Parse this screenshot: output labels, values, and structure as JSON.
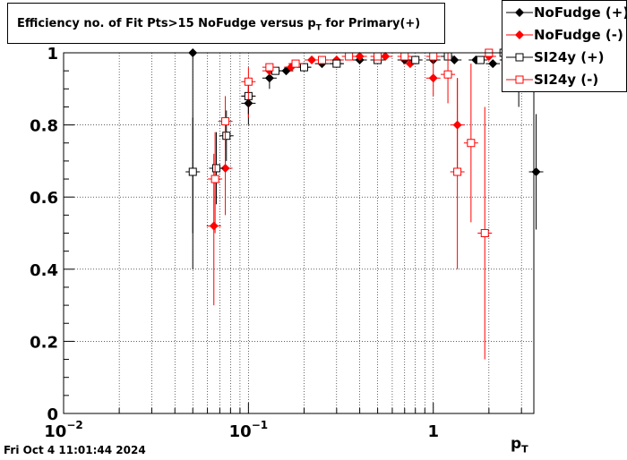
{
  "chart_data": {
    "type": "scatter",
    "title_main": "Efficiency no. of Fit Pts>15 NoFudge versus p",
    "title_sub": "T",
    "title_tail": " for Primary(+)",
    "xlabel_main": "p",
    "xlabel_sub": "T",
    "x_scale": "log",
    "xlim": [
      0.01,
      3.5
    ],
    "ylim": [
      0,
      1.0
    ],
    "grid": true,
    "legend_position": "top-right",
    "x_ticks": [
      {
        "value": 0.01,
        "base": "10",
        "exp": "−2"
      },
      {
        "value": 0.1,
        "base": "10",
        "exp": "−1"
      },
      {
        "value": 1,
        "base": "1",
        "exp": ""
      }
    ],
    "y_ticks": [
      "0",
      "0.2",
      "0.4",
      "0.6",
      "0.8",
      "1"
    ],
    "series": [
      {
        "name": "NoFudge (+)",
        "color": "#000000",
        "marker": "diamond-filled",
        "points": [
          {
            "x": 0.05,
            "y": 1.0,
            "lo": 0.4,
            "hi": 1.0
          },
          {
            "x": 0.1,
            "y": 0.86,
            "lo": 0.8,
            "hi": 0.9
          },
          {
            "x": 0.13,
            "y": 0.93,
            "lo": 0.9,
            "hi": 0.96
          },
          {
            "x": 0.16,
            "y": 0.95
          },
          {
            "x": 0.2,
            "y": 0.96
          },
          {
            "x": 0.25,
            "y": 0.97
          },
          {
            "x": 0.3,
            "y": 0.97
          },
          {
            "x": 0.4,
            "y": 0.98
          },
          {
            "x": 0.5,
            "y": 0.98
          },
          {
            "x": 0.7,
            "y": 0.98
          },
          {
            "x": 1.0,
            "y": 0.98
          },
          {
            "x": 1.3,
            "y": 0.98
          },
          {
            "x": 1.7,
            "y": 0.98
          },
          {
            "x": 2.1,
            "y": 0.97
          },
          {
            "x": 2.5,
            "y": 0.98
          },
          {
            "x": 2.9,
            "y": 0.92,
            "lo": 0.85,
            "hi": 0.98
          },
          {
            "x": 3.6,
            "y": 0.67,
            "lo": 0.51,
            "hi": 0.83
          }
        ]
      },
      {
        "name": "NoFudge (-)",
        "color": "#ff0000",
        "marker": "diamond-filled",
        "points": [
          {
            "x": 0.065,
            "y": 0.52,
            "lo": 0.3,
            "hi": 0.72
          },
          {
            "x": 0.075,
            "y": 0.68,
            "lo": 0.55,
            "hi": 0.8
          },
          {
            "x": 0.1,
            "y": 0.88,
            "lo": 0.82,
            "hi": 0.93
          },
          {
            "x": 0.13,
            "y": 0.95
          },
          {
            "x": 0.17,
            "y": 0.96
          },
          {
            "x": 0.22,
            "y": 0.98
          },
          {
            "x": 0.3,
            "y": 0.98
          },
          {
            "x": 0.4,
            "y": 0.99
          },
          {
            "x": 0.55,
            "y": 0.99
          },
          {
            "x": 0.75,
            "y": 0.97
          },
          {
            "x": 1.0,
            "y": 0.93,
            "lo": 0.88,
            "hi": 0.98
          },
          {
            "x": 1.35,
            "y": 0.8,
            "lo": 0.67,
            "hi": 0.93
          },
          {
            "x": 2.0,
            "y": 0.99
          },
          {
            "x": 3.2,
            "y": 1.0
          }
        ]
      },
      {
        "name": "SI24y (+)",
        "color": "#000000",
        "marker": "square-open",
        "points": [
          {
            "x": 0.05,
            "y": 0.67,
            "lo": 0.5,
            "hi": 0.82
          },
          {
            "x": 0.067,
            "y": 0.68,
            "lo": 0.58,
            "hi": 0.78
          },
          {
            "x": 0.076,
            "y": 0.77,
            "lo": 0.7,
            "hi": 0.84
          },
          {
            "x": 0.1,
            "y": 0.88,
            "lo": 0.83,
            "hi": 0.93
          },
          {
            "x": 0.14,
            "y": 0.95
          },
          {
            "x": 0.2,
            "y": 0.96
          },
          {
            "x": 0.3,
            "y": 0.97
          },
          {
            "x": 0.5,
            "y": 0.98
          },
          {
            "x": 0.8,
            "y": 0.98
          },
          {
            "x": 1.2,
            "y": 0.99
          },
          {
            "x": 1.8,
            "y": 0.98
          },
          {
            "x": 2.4,
            "y": 1.0
          }
        ]
      },
      {
        "name": "SI24y (-)",
        "color": "#ff0000",
        "marker": "square-open",
        "points": [
          {
            "x": 0.066,
            "y": 0.65,
            "lo": 0.5,
            "hi": 0.78
          },
          {
            "x": 0.075,
            "y": 0.81,
            "lo": 0.73,
            "hi": 0.88
          },
          {
            "x": 0.1,
            "y": 0.92,
            "lo": 0.87,
            "hi": 0.96
          },
          {
            "x": 0.13,
            "y": 0.96
          },
          {
            "x": 0.18,
            "y": 0.97
          },
          {
            "x": 0.25,
            "y": 0.98
          },
          {
            "x": 0.35,
            "y": 0.99
          },
          {
            "x": 0.5,
            "y": 0.99
          },
          {
            "x": 0.7,
            "y": 0.99
          },
          {
            "x": 1.0,
            "y": 0.99
          },
          {
            "x": 1.2,
            "y": 0.94,
            "lo": 0.86,
            "hi": 1.0
          },
          {
            "x": 1.35,
            "y": 0.67,
            "lo": 0.4,
            "hi": 0.93
          },
          {
            "x": 1.6,
            "y": 0.75,
            "lo": 0.53,
            "hi": 0.97
          },
          {
            "x": 1.9,
            "y": 0.5,
            "lo": 0.15,
            "hi": 0.85
          },
          {
            "x": 2.0,
            "y": 1.0
          }
        ]
      }
    ]
  },
  "legend": [
    {
      "label": "NoFudge (+)",
      "color": "#000000",
      "marker": "diamond-filled"
    },
    {
      "label": "NoFudge (-)",
      "color": "#ff0000",
      "marker": "diamond-filled"
    },
    {
      "label": "SI24y (+)",
      "color": "#000000",
      "marker": "square-open"
    },
    {
      "label": "SI24y (-)",
      "color": "#ff0000",
      "marker": "square-open"
    }
  ],
  "timestamp": "Fri Oct  4 11:01:44 2024"
}
